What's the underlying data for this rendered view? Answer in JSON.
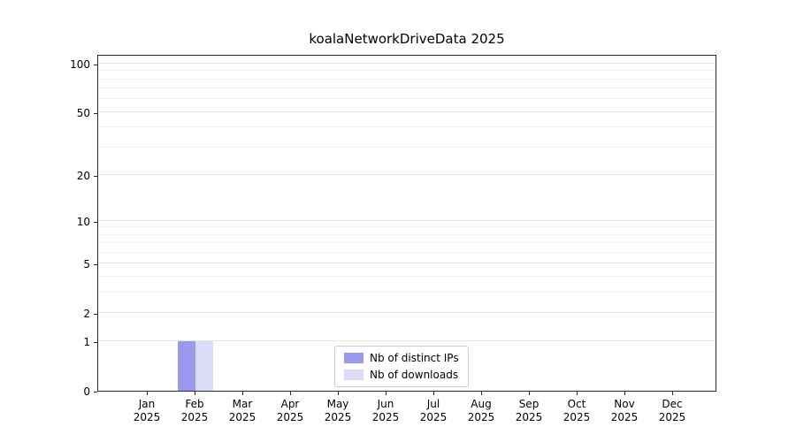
{
  "page": {
    "background_color": "#ffffff"
  },
  "chart_data": {
    "type": "bar",
    "title": "koalaNetworkDriveData 2025",
    "categories": [
      "Jan 2025",
      "Feb 2025",
      "Mar 2025",
      "Apr 2025",
      "May 2025",
      "Jun 2025",
      "Jul 2025",
      "Aug 2025",
      "Sep 2025",
      "Oct 2025",
      "Nov 2025",
      "Dec 2025"
    ],
    "series": [
      {
        "name": "Nb of distinct IPs",
        "color": "#9999ee",
        "values": [
          0,
          1,
          0,
          0,
          0,
          0,
          0,
          0,
          0,
          0,
          0,
          0
        ]
      },
      {
        "name": "Nb of downloads",
        "color": "#dcdcf8",
        "values": [
          0,
          1,
          0,
          0,
          0,
          0,
          0,
          0,
          0,
          0,
          0,
          0
        ]
      }
    ],
    "xlabel": "",
    "ylabel": "",
    "yticks": [
      0,
      1,
      2,
      5,
      10,
      20,
      50,
      100
    ],
    "ylim": [
      0,
      112
    ],
    "yscale": "log(1+v)",
    "grid": true,
    "gridline_color_major": "#e5e5e5",
    "gridline_color_minor": "#f2f2f2",
    "legend_position": "bottom-center"
  }
}
